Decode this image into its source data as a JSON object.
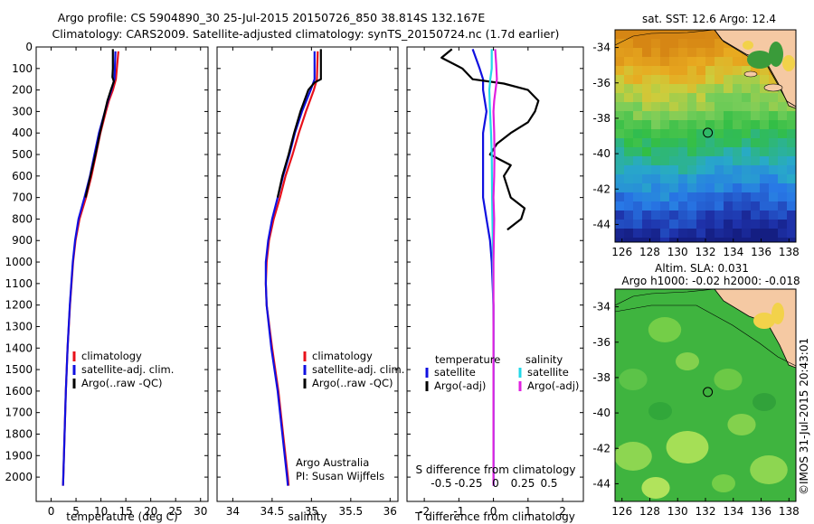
{
  "header": {
    "line1": "Argo profile: CS 5904890_30 25-Jul-2015 20150726_850 38.814S 132.167E",
    "line2": "Climatology: CARS2009. Satellite-adjusted climatology: synTS_20150724.nc (1.7d earlier)"
  },
  "side_text": "©IMOS 31-Jul-2015 20:43:01",
  "colors": {
    "climatology": "#e8101a",
    "satellite_temp": "#1010e0",
    "argo_temp": "#000000",
    "satellite_sal": "#22d8e8",
    "argo_sal": "#e020e0"
  },
  "chart_data": [
    {
      "type": "line",
      "panel": "temperature",
      "xlabel": "temperature (deg C)",
      "ylabel": "",
      "xlim": [
        -3,
        31.5
      ],
      "ylim": [
        2050,
        0
      ],
      "xticks": [
        0,
        5,
        10,
        15,
        20,
        25,
        30
      ],
      "yticks": [
        0,
        100,
        200,
        300,
        400,
        500,
        600,
        700,
        800,
        900,
        1000,
        1100,
        1200,
        1300,
        1400,
        1500,
        1600,
        1700,
        1800,
        1900,
        2000
      ],
      "legend": [
        "climatology",
        "satellite-adj. clim.",
        "Argo(..raw -QC)"
      ],
      "legend_position": "center-right",
      "series": [
        {
          "name": "climatology",
          "color": "#e8101a",
          "depth": [
            20,
            100,
            150,
            200,
            250,
            300,
            400,
            500,
            600,
            700,
            800,
            900,
            1000,
            1200,
            1400,
            1600,
            1800,
            2000,
            2040
          ],
          "values": [
            13.5,
            13.2,
            13.0,
            12.4,
            11.6,
            11.0,
            9.9,
            9.0,
            8.1,
            7.0,
            5.7,
            4.9,
            4.4,
            3.8,
            3.3,
            2.95,
            2.7,
            2.45,
            2.4
          ]
        },
        {
          "name": "satellite-adj. clim.",
          "color": "#1010e0",
          "depth": [
            20,
            100,
            150,
            200,
            250,
            300,
            400,
            500,
            600,
            700,
            800,
            900,
            1000,
            1200,
            1400,
            1600,
            1800,
            2000,
            2040
          ],
          "values": [
            12.9,
            12.8,
            12.7,
            12.1,
            11.4,
            10.8,
            9.6,
            8.7,
            7.8,
            6.7,
            5.5,
            4.8,
            4.35,
            3.75,
            3.3,
            2.95,
            2.7,
            2.45,
            2.4
          ]
        },
        {
          "name": "Argo(..raw -QC)",
          "color": "#000000",
          "depth": [
            10,
            100,
            140,
            160,
            200,
            250,
            300,
            400,
            500,
            600,
            700
          ],
          "values": [
            12.4,
            12.4,
            12.3,
            12.6,
            12.0,
            11.3,
            10.8,
            9.8,
            8.9,
            7.9,
            6.9
          ]
        }
      ]
    },
    {
      "type": "line",
      "panel": "salinity",
      "xlabel": "salinity",
      "ylabel": "",
      "xlim": [
        33.8,
        36.1
      ],
      "ylim": [
        2050,
        0
      ],
      "xticks": [
        34,
        34.5,
        35,
        35.5,
        36
      ],
      "xtick_labels": [
        "34",
        "34.5",
        "35",
        "35.5",
        "36"
      ],
      "legend": [
        "climatology",
        "satellite-adj. clim.",
        "Argo(..raw -QC)"
      ],
      "legend_position": "center-right",
      "annotations": [
        "Argo Australia",
        "PI: Susan Wijffels"
      ],
      "series": [
        {
          "name": "climatology",
          "color": "#e8101a",
          "depth": [
            20,
            150,
            200,
            300,
            400,
            500,
            600,
            700,
            800,
            900,
            1000,
            1100,
            1200,
            1400,
            1600,
            1800,
            2000,
            2040
          ],
          "values": [
            35.08,
            35.07,
            35.03,
            34.93,
            34.84,
            34.76,
            34.67,
            34.6,
            34.52,
            34.46,
            34.43,
            34.42,
            34.43,
            34.5,
            34.58,
            34.64,
            34.7,
            34.71
          ]
        },
        {
          "name": "satellite-adj. clim.",
          "color": "#1010e0",
          "depth": [
            20,
            150,
            200,
            300,
            400,
            500,
            600,
            700,
            800,
            900,
            1000,
            1100,
            1200,
            1400,
            1600,
            1800,
            2000,
            2040
          ],
          "values": [
            35.04,
            35.04,
            34.99,
            34.88,
            34.79,
            34.72,
            34.64,
            34.57,
            34.5,
            34.45,
            34.42,
            34.42,
            34.43,
            34.49,
            34.57,
            34.63,
            34.69,
            34.7
          ]
        },
        {
          "name": "Argo(..raw -QC)",
          "color": "#000000",
          "depth": [
            10,
            150,
            165,
            200,
            300,
            400,
            500,
            600,
            700
          ],
          "values": [
            35.12,
            35.12,
            35.04,
            34.96,
            34.86,
            34.78,
            34.71,
            34.63,
            34.57
          ]
        }
      ]
    },
    {
      "type": "line",
      "panel": "difference",
      "xlabel": "T difference from climatology",
      "xlabel_top": "S difference from climatology",
      "xlim": [
        -2.5,
        2.6
      ],
      "ylim": [
        2050,
        0
      ],
      "xticks": [
        -2,
        -1,
        0,
        1,
        2
      ],
      "top_ticks": [
        -0.5,
        -0.25,
        0,
        0.25,
        0.5
      ],
      "top_tick_labels": [
        "-0.5",
        "-0.25",
        "0",
        "0.25",
        "0.5"
      ],
      "legend_headers": [
        "temperature",
        "salinity"
      ],
      "legend": [
        "satellite",
        "Argo(-adj)",
        "satellite",
        "Argo(-adj)"
      ],
      "legend_position": "center",
      "series": [
        {
          "name": "satellite",
          "group": "temperature",
          "color": "#1010e0",
          "depth": [
            10,
            100,
            150,
            200,
            300,
            400,
            500,
            600,
            700,
            800,
            900,
            1000,
            1200,
            1600,
            2000,
            2040
          ],
          "values": [
            -0.6,
            -0.4,
            -0.3,
            -0.3,
            -0.2,
            -0.3,
            -0.3,
            -0.3,
            -0.3,
            -0.2,
            -0.1,
            -0.05,
            0,
            0,
            0,
            0
          ]
        },
        {
          "name": "Argo(-adj)",
          "group": "temperature",
          "color": "#000000",
          "depth": [
            10,
            50,
            100,
            150,
            170,
            200,
            250,
            300,
            350,
            400,
            450,
            500,
            550,
            600,
            700,
            750,
            800,
            850
          ],
          "values": [
            -1.2,
            -1.5,
            -0.9,
            -0.6,
            0.3,
            1.0,
            1.3,
            1.2,
            1.0,
            0.5,
            0.1,
            -0.1,
            0.5,
            0.3,
            0.5,
            0.9,
            0.8,
            0.4
          ]
        },
        {
          "name": "satellite",
          "group": "salinity",
          "color": "#22d8e8",
          "depth": [
            10,
            100,
            150,
            200,
            300,
            400,
            500,
            700,
            900,
            1100,
            1300,
            1600,
            2000,
            2040
          ],
          "values": [
            -0.05,
            -0.05,
            -0.09,
            -0.12,
            -0.1,
            -0.07,
            -0.05,
            -0.04,
            -0.02,
            -0.01,
            0,
            0,
            0,
            0
          ]
        },
        {
          "name": "Argo(-adj)",
          "group": "salinity",
          "color": "#e020e0",
          "depth": [
            10,
            80,
            150,
            200,
            250,
            300,
            400,
            500,
            600,
            700,
            800,
            900,
            1000,
            1200,
            1600,
            2000,
            2040
          ],
          "values": [
            0.05,
            0.08,
            0.1,
            0.06,
            0.02,
            0.0,
            0.02,
            0.03,
            0.02,
            0.0,
            0.02,
            0.01,
            0.0,
            0.0,
            0.0,
            0.0,
            0.0
          ]
        }
      ]
    },
    {
      "type": "heatmap",
      "panel": "sst_map",
      "title": "sat. SST: 12.6 Argo: 12.4",
      "xlim": [
        125.5,
        138.5
      ],
      "ylim": [
        -45,
        -33
      ],
      "xticks": [
        126,
        128,
        130,
        132,
        134,
        136,
        138
      ],
      "yticks": [
        -34,
        -36,
        -38,
        -40,
        -42,
        -44
      ],
      "marker": {
        "lon": 132.167,
        "lat": -38.814
      }
    },
    {
      "type": "heatmap",
      "panel": "sla_map",
      "title": "Altim. SLA: 0.031",
      "subtitle": "Argo h1000: -0.02 h2000: -0.018",
      "xlim": [
        125.5,
        138.5
      ],
      "ylim": [
        -45,
        -33
      ],
      "xticks": [
        126,
        128,
        130,
        132,
        134,
        136,
        138
      ],
      "yticks": [
        -34,
        -36,
        -38,
        -40,
        -42,
        -44
      ],
      "marker": {
        "lon": 132.167,
        "lat": -38.814
      }
    }
  ]
}
